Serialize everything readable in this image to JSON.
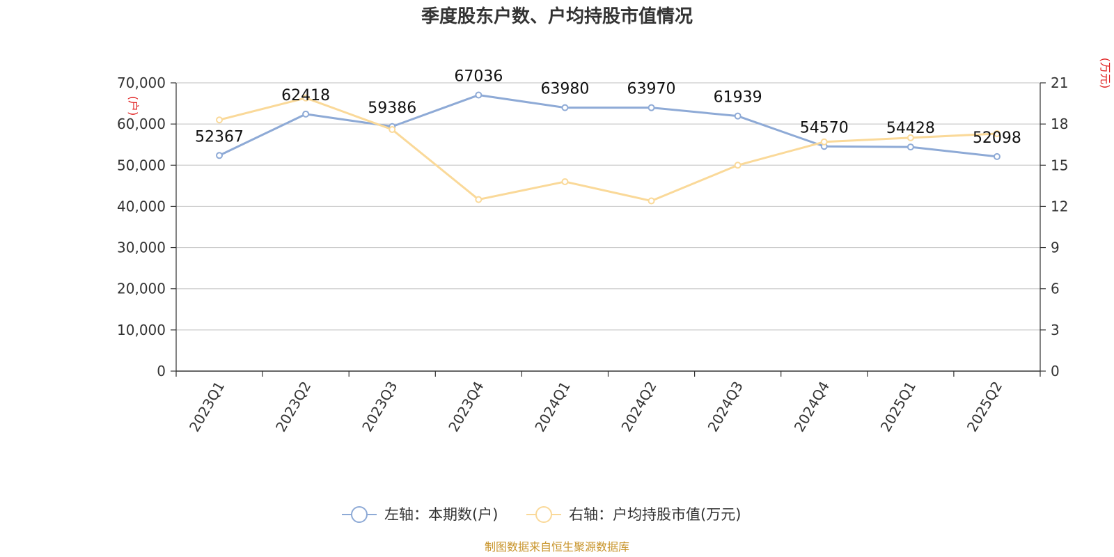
{
  "chart_data": {
    "type": "line",
    "title": "季度股东户数、户均持股市值情况",
    "categories": [
      "2023Q1",
      "2023Q2",
      "2023Q3",
      "2023Q4",
      "2024Q1",
      "2024Q2",
      "2024Q3",
      "2024Q4",
      "2025Q1",
      "2025Q2"
    ],
    "left_axis": {
      "unit_label": "(户)",
      "ylim": [
        0,
        70000
      ],
      "ticks": [
        "0",
        "10,000",
        "20,000",
        "30,000",
        "40,000",
        "50,000",
        "60,000",
        "70,000"
      ]
    },
    "right_axis": {
      "unit_label": "(万元)",
      "ylim": [
        0,
        21
      ],
      "ticks": [
        "0",
        "3",
        "6",
        "9",
        "12",
        "15",
        "18",
        "21"
      ]
    },
    "series": [
      {
        "name": "左轴：本期数(户)",
        "axis": "left",
        "color": "#8eaad6",
        "values": [
          52367,
          62418,
          59386,
          67036,
          63980,
          63970,
          61939,
          54570,
          54428,
          52098
        ],
        "labels": [
          "52367",
          "62418",
          "59386",
          "67036",
          "63980",
          "63970",
          "61939",
          "54570",
          "54428",
          "52098"
        ]
      },
      {
        "name": "右轴：户均持股市值(万元)",
        "axis": "right",
        "color": "#fad999",
        "values": [
          18.3,
          19.9,
          17.6,
          12.5,
          13.8,
          12.4,
          15.0,
          16.7,
          17.0,
          17.3
        ]
      }
    ],
    "grid": true,
    "legend_position": "bottom",
    "axis_label_color": "#e02020"
  },
  "source": "制图数据来自恒生聚源数据库",
  "source_color": "#c8942a"
}
